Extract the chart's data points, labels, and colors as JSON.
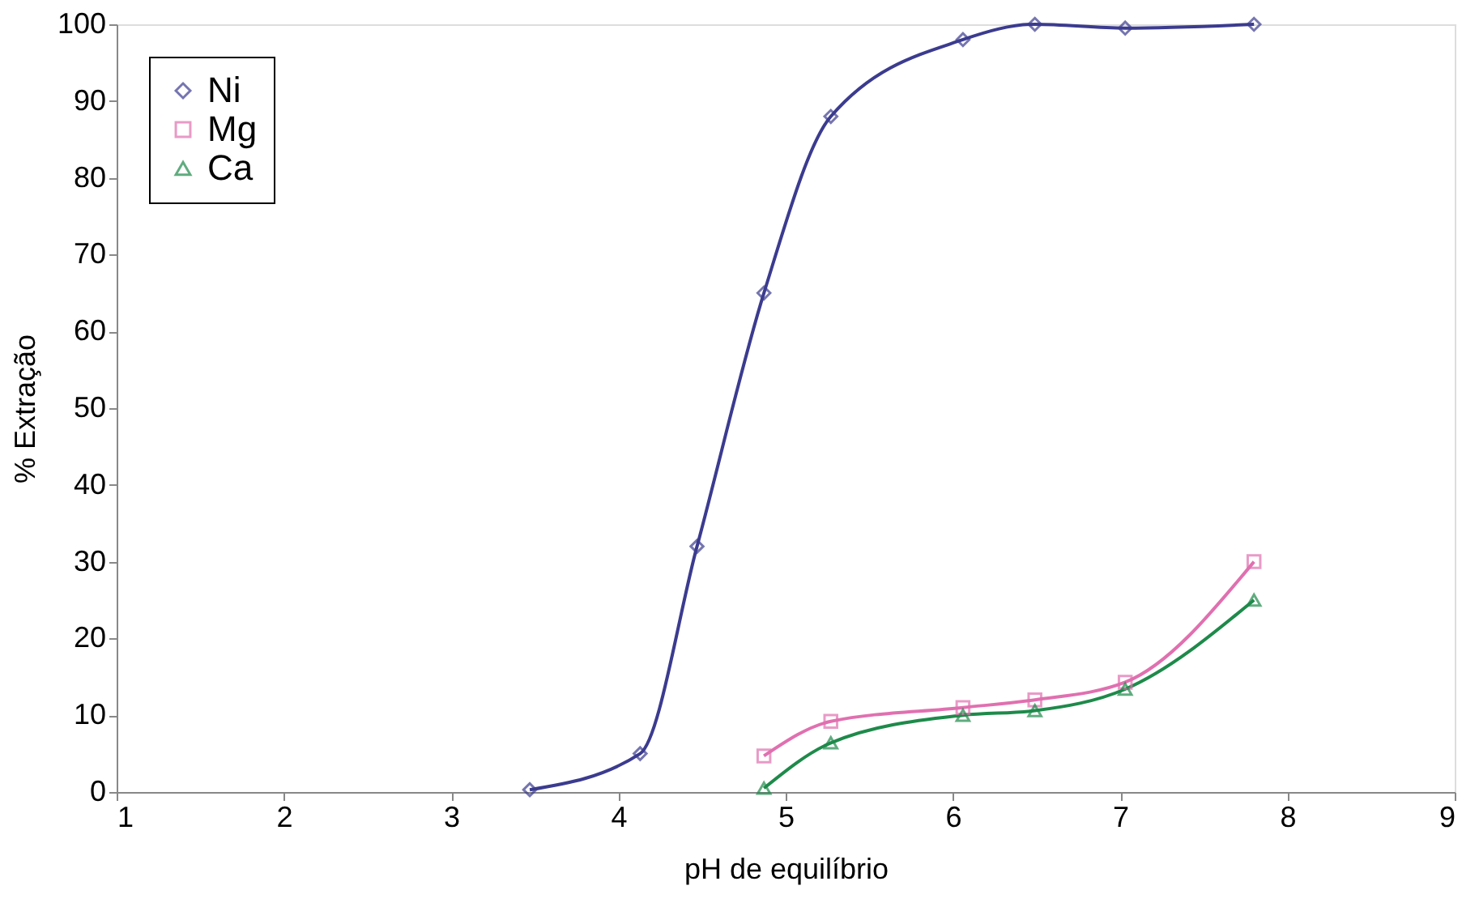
{
  "chart_data": {
    "type": "line",
    "xlabel": "pH de equilíbrio",
    "ylabel": "% Extração",
    "xlim": [
      1,
      9
    ],
    "xticks": [
      1,
      2,
      3,
      4,
      5,
      6,
      7,
      8,
      9
    ],
    "ylim": [
      0,
      100
    ],
    "yticks": [
      0,
      10,
      20,
      30,
      40,
      50,
      60,
      70,
      80,
      90,
      100
    ],
    "grid": false,
    "legend": "top left",
    "line_style": "solid",
    "series": [
      {
        "name": "Ni",
        "color": "#3b3b8f",
        "marker": "diamond",
        "x": [
          3.47,
          4.13,
          4.47,
          4.87,
          5.27,
          6.06,
          6.49,
          7.03,
          7.8
        ],
        "values": [
          0.3,
          5,
          32,
          65,
          88,
          98,
          100,
          99.5,
          100
        ]
      },
      {
        "name": "Mg",
        "color": "#e070b0",
        "marker": "square",
        "x": [
          4.87,
          5.27,
          6.06,
          6.49,
          7.03,
          7.8
        ],
        "values": [
          4.7,
          9.2,
          11,
          12,
          14.3,
          30
        ]
      },
      {
        "name": "Ca",
        "color": "#1e8a4a",
        "marker": "triangle",
        "x": [
          4.87,
          5.27,
          6.06,
          6.49,
          7.03,
          7.8
        ],
        "values": [
          0.5,
          6.4,
          10,
          10.6,
          13.4,
          25
        ]
      }
    ]
  }
}
